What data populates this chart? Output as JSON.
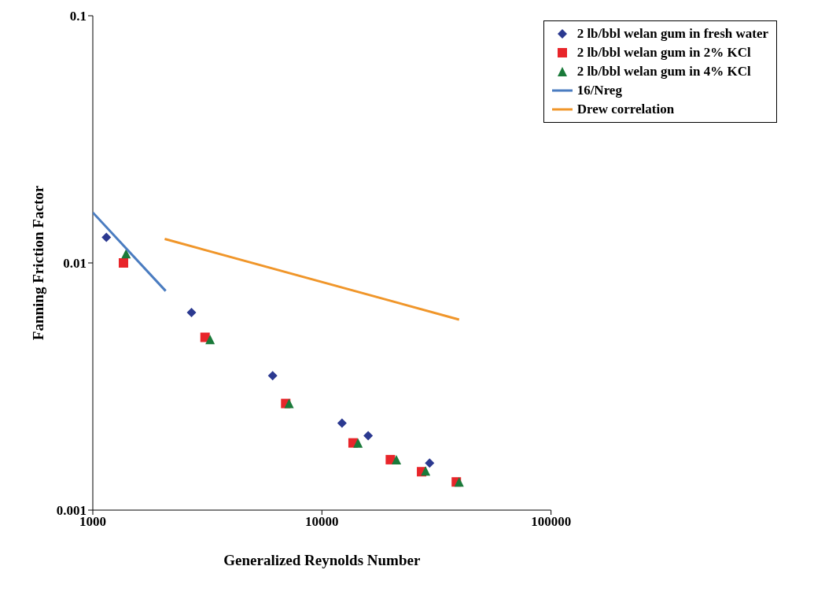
{
  "chart_data": {
    "type": "scatter",
    "xlabel": "Generalized  Reynolds Number",
    "ylabel": "Fanning Friction Factor",
    "log": "xy",
    "xlim": [
      1000,
      100000
    ],
    "xticks": [
      1000,
      10000,
      100000
    ],
    "ylim": [
      0.001,
      0.1
    ],
    "yticks": [
      0.001,
      0.01,
      0.1
    ],
    "legend": "top right",
    "series": [
      {
        "name": "2 lb/bbl welan gum in fresh water",
        "color": "#2b3990",
        "marker": "diamond",
        "x": [
          1146,
          2697,
          6095,
          12240,
          15920,
          29520
        ],
        "values": [
          0.0127,
          0.0063,
          0.0035,
          0.00225,
          0.002,
          0.00155
        ]
      },
      {
        "name": "2 lb/bbl welan gum in 2% KCl",
        "color": "#e8252a",
        "marker": "square",
        "x": [
          1361,
          3090,
          6950,
          13680,
          19900,
          27230,
          38610
        ],
        "values": [
          0.01,
          0.005,
          0.0027,
          0.00187,
          0.0016,
          0.00143,
          0.0013
        ]
      },
      {
        "name": "2 lb/bbl welan gum in 4% KCl",
        "color": "#1a7a3a",
        "marker": "triangle",
        "x": [
          1397,
          3250,
          7190,
          14370,
          21140,
          28340,
          39700
        ],
        "values": [
          0.0109,
          0.0049,
          0.0027,
          0.00187,
          0.0016,
          0.00144,
          0.0013
        ]
      },
      {
        "name": "16/Nreg",
        "type": "line",
        "color": "#4a7cc0",
        "x": [
          1000,
          2080
        ],
        "values": [
          0.016,
          0.0077
        ]
      },
      {
        "name": "Drew correlation",
        "type": "line",
        "color": "#f0962a",
        "x": [
          2060,
          39700
        ],
        "values": [
          0.0125,
          0.0059
        ]
      }
    ]
  }
}
